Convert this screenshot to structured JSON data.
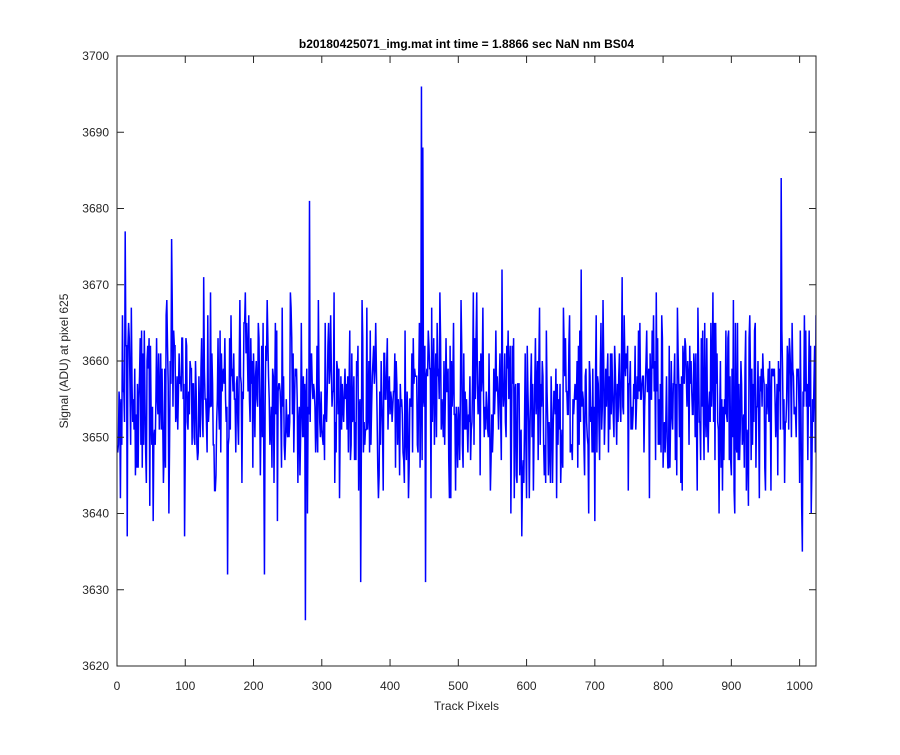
{
  "chart_data": {
    "type": "line",
    "title": "b20180425071_img.mat int time = 1.8866 sec  NaN nm BS04",
    "xlabel": "Track Pixels",
    "ylabel": "Signal (ADU) at pixel 625",
    "xlim": [
      0,
      1024
    ],
    "ylim": [
      3620,
      3700
    ],
    "x_ticks": [
      0,
      100,
      200,
      300,
      400,
      500,
      600,
      700,
      800,
      900,
      1000
    ],
    "y_ticks": [
      3620,
      3630,
      3640,
      3650,
      3660,
      3670,
      3680,
      3690,
      3700
    ],
    "x_tick_labels": [
      "0",
      "100",
      "200",
      "300",
      "400",
      "500",
      "600",
      "700",
      "800",
      "900",
      "1000"
    ],
    "y_tick_labels": [
      "3620",
      "3630",
      "3640",
      "3650",
      "3660",
      "3670",
      "3680",
      "3690",
      "3700"
    ],
    "grid": false,
    "line_color": "#0000ff",
    "x_start": 1,
    "notable_points": [
      {
        "x": 2,
        "y": 3649
      },
      {
        "x": 12,
        "y": 3677
      },
      {
        "x": 53,
        "y": 3639
      },
      {
        "x": 80,
        "y": 3676
      },
      {
        "x": 162,
        "y": 3632
      },
      {
        "x": 216,
        "y": 3632
      },
      {
        "x": 276,
        "y": 3626
      },
      {
        "x": 282,
        "y": 3681
      },
      {
        "x": 357,
        "y": 3631
      },
      {
        "x": 446,
        "y": 3696
      },
      {
        "x": 448,
        "y": 3688
      },
      {
        "x": 452,
        "y": 3631
      },
      {
        "x": 973,
        "y": 3684
      },
      {
        "x": 1004,
        "y": 3635
      },
      {
        "x": 1024,
        "y": 3666
      }
    ],
    "series": [
      {
        "mean": 3655,
        "std": 6.5,
        "values": []
      }
    ]
  }
}
